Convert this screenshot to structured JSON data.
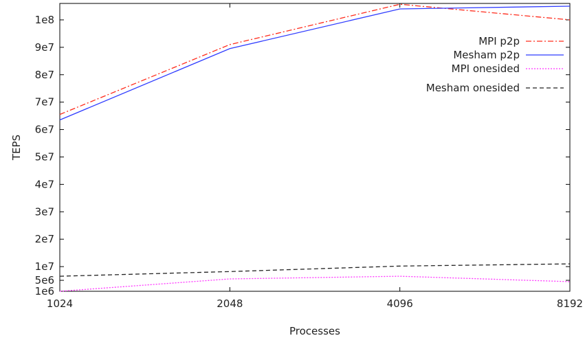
{
  "chart_data": {
    "type": "line",
    "title": "",
    "xlabel": "Processes",
    "ylabel": "TEPS",
    "x_scale": "log2",
    "x": [
      1024,
      2048,
      4096,
      8192
    ],
    "x_tick_labels": [
      "1024",
      "2048",
      "4096",
      "8192"
    ],
    "xlim": [
      1024,
      8192
    ],
    "y_ticks": [
      {
        "value": 1000000,
        "label": "1e6"
      },
      {
        "value": 5000000,
        "label": "5e6"
      },
      {
        "value": 10000000,
        "label": "1e7"
      },
      {
        "value": 20000000,
        "label": "2e7"
      },
      {
        "value": 30000000,
        "label": "3e7"
      },
      {
        "value": 40000000,
        "label": "4e7"
      },
      {
        "value": 50000000,
        "label": "5e7"
      },
      {
        "value": 60000000,
        "label": "6e7"
      },
      {
        "value": 70000000,
        "label": "7e7"
      },
      {
        "value": 80000000,
        "label": "8e7"
      },
      {
        "value": 90000000,
        "label": "9e7"
      },
      {
        "value": 100000000,
        "label": "1e8"
      }
    ],
    "ylim": [
      1000000,
      106000000
    ],
    "grid": false,
    "legend_position": "top-right",
    "series": [
      {
        "name": "MPI p2p",
        "values": [
          65500000,
          91000000,
          105700000,
          100000000
        ],
        "color": "#ff2a1a",
        "dash": "8,3,2,3"
      },
      {
        "name": "Mesham p2p",
        "values": [
          63500000,
          89500000,
          104000000,
          105000000
        ],
        "color": "#2f3cff",
        "dash": ""
      },
      {
        "name": "MPI onesided",
        "values": [
          1000000,
          5500000,
          6500000,
          4500000
        ],
        "color": "#ff33ff",
        "dash": "2,2"
      },
      {
        "name": "Mesham onesided",
        "values": [
          6500000,
          8200000,
          10200000,
          11000000
        ],
        "color": "#222222",
        "dash": "6,4"
      }
    ]
  }
}
